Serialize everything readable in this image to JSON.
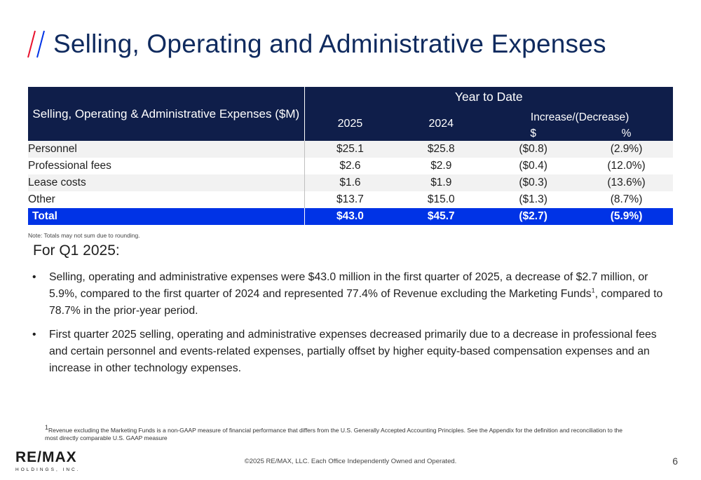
{
  "page": {
    "title": "Selling, Operating and Administrative Expenses",
    "slash_colors": [
      "#e8112d",
      "#0033e6"
    ]
  },
  "table": {
    "row_header": "Selling, Operating & Administrative Expenses ($M)",
    "period_header": "Year to Date",
    "year_1": "2025",
    "year_2": "2024",
    "change_header": "Increase/(Decrease)",
    "change_dollar": "$",
    "change_pct": "%",
    "rows": [
      {
        "label": "Personnel",
        "y2025": "$25.1",
        "y2024": "$25.8",
        "dollar": "($0.8)",
        "pct": "(2.9%)"
      },
      {
        "label": "Professional fees",
        "y2025": "$2.6",
        "y2024": "$2.9",
        "dollar": "($0.4)",
        "pct": "(12.0%)"
      },
      {
        "label": "Lease costs",
        "y2025": "$1.6",
        "y2024": "$1.9",
        "dollar": "($0.3)",
        "pct": "(13.6%)"
      },
      {
        "label": "Other",
        "y2025": "$13.7",
        "y2024": "$15.0",
        "dollar": "($1.3)",
        "pct": "(8.7%)"
      }
    ],
    "total": {
      "label": "Total",
      "y2025": "$43.0",
      "y2024": "$45.7",
      "dollar": "($2.7)",
      "pct": "(5.9%)"
    },
    "header_color": "#0f1e4a",
    "total_color": "#0033e6"
  },
  "note": "Note: Totals may not sum due to rounding.",
  "section": {
    "heading": "For Q1 2025:",
    "bullet_1_pre": "Selling, operating and administrative expenses were $43.0 million in the first quarter of 2025, a decrease of $2.7 million, or 5.9%, compared to the first quarter of 2024 and represented 77.4% of Revenue excluding the Marketing Funds",
    "bullet_1_sup": "1",
    "bullet_1_post": ", compared to 78.7% in the prior-year period.",
    "bullet_2": "First quarter 2025 selling, operating and administrative expenses decreased primarily due to a decrease in professional fees and certain personnel and events-related expenses, partially offset by higher equity-based compensation expenses and an increase in other technology expenses."
  },
  "footnote": {
    "marker": "1",
    "text": "Revenue excluding the Marketing Funds is a non-GAAP measure of financial performance that differs from the U.S. Generally Accepted Accounting Principles. See the Appendix for the definition and reconciliation to the most directly comparable U.S. GAAP measure"
  },
  "footer": {
    "logo_main": "RE/MAX",
    "logo_sub": "HOLDINGS, INC.",
    "copyright": "©2025 RE/MAX, LLC. Each Office Independently Owned and Operated.",
    "page_number": "6"
  }
}
